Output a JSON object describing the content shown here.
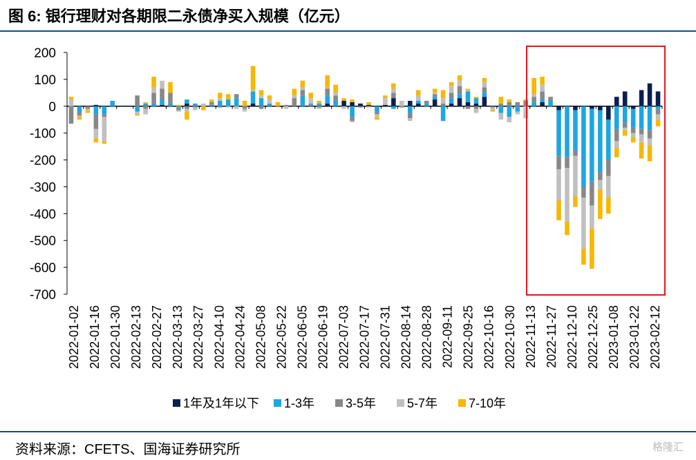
{
  "title": "图 6:  银行理财对各期限二永债净买入规模（亿元）",
  "source": "资料来源：CFETS、国海证券研究所",
  "watermark": "格隆汇",
  "chart_data": {
    "type": "bar",
    "stacked": true,
    "ylim": [
      -700,
      200
    ],
    "yticks": [
      200,
      100,
      0,
      -100,
      -200,
      -300,
      -400,
      -500,
      -600,
      -700
    ],
    "xtick_labels": [
      "2022-01-02",
      "2022-01-16",
      "2022-01-30",
      "2022-02-13",
      "2022-02-27",
      "2022-03-13",
      "2022-03-27",
      "2022-04-10",
      "2022-04-24",
      "2022-05-08",
      "2022-05-22",
      "2022-06-05",
      "2022-06-19",
      "2022-07-03",
      "2022-07-17",
      "2022-07-31",
      "2022-08-14",
      "2022-08-28",
      "2022-09-11",
      "2022-09-25",
      "2022-10-16",
      "2022-10-30",
      "2022-11-13",
      "2022-11-27",
      "2022-12-10",
      "2022-12-25",
      "2023-01-08",
      "2023-01-22",
      "2023-02-12"
    ],
    "legend_position": "bottom",
    "highlight_box": {
      "from_index": 58,
      "to_index": 70,
      "color": "#e8141b"
    },
    "series": [
      {
        "name": "1年及1年以下",
        "color": "#0b1f4f",
        "values": [
          0,
          0,
          0,
          5,
          0,
          0,
          0,
          0,
          0,
          0,
          0,
          5,
          0,
          0,
          10,
          0,
          0,
          0,
          0,
          0,
          0,
          0,
          10,
          0,
          0,
          0,
          0,
          0,
          0,
          0,
          0,
          10,
          0,
          20,
          15,
          10,
          5,
          0,
          5,
          30,
          0,
          20,
          10,
          0,
          25,
          0,
          10,
          30,
          15,
          10,
          35,
          0,
          0,
          0,
          0,
          0,
          0,
          15,
          0,
          -15,
          0,
          -15,
          0,
          -10,
          -15,
          -50,
          35,
          55,
          -10,
          60,
          85,
          55
        ]
      },
      {
        "name": "1-3年",
        "color": "#1ea6e2",
        "values": [
          0,
          -20,
          0,
          -30,
          -30,
          20,
          0,
          0,
          -20,
          10,
          10,
          20,
          10,
          -5,
          15,
          10,
          0,
          5,
          20,
          25,
          30,
          0,
          45,
          30,
          10,
          0,
          0,
          0,
          40,
          5,
          10,
          30,
          20,
          0,
          -40,
          0,
          0,
          -20,
          0,
          -10,
          0,
          -25,
          10,
          10,
          10,
          -55,
          20,
          15,
          40,
          20,
          15,
          0,
          -25,
          -40,
          -20,
          0,
          15,
          10,
          20,
          -170,
          -190,
          -150,
          -300,
          -270,
          -230,
          -150,
          -85,
          -60,
          -70,
          -85,
          -90,
          -10
        ]
      },
      {
        "name": "3-5年",
        "color": "#888888",
        "values": [
          -65,
          -15,
          -10,
          -55,
          -10,
          0,
          0,
          0,
          40,
          -10,
          40,
          40,
          40,
          -10,
          -10,
          -5,
          0,
          10,
          -5,
          0,
          15,
          -10,
          0,
          -10,
          0,
          0,
          5,
          30,
          20,
          5,
          -5,
          25,
          20,
          0,
          -15,
          -5,
          0,
          -10,
          0,
          20,
          -5,
          -20,
          0,
          10,
          10,
          10,
          20,
          30,
          -10,
          -10,
          20,
          -5,
          10,
          15,
          15,
          20,
          20,
          30,
          15,
          -50,
          -40,
          -20,
          -40,
          -90,
          -30,
          -60,
          -45,
          -20,
          -20,
          -20,
          -30,
          -20
        ]
      },
      {
        "name": "5-7年",
        "color": "#c0c0c0",
        "values": [
          25,
          -5,
          -5,
          -35,
          -90,
          0,
          0,
          0,
          -10,
          -20,
          20,
          30,
          0,
          -5,
          -10,
          -10,
          10,
          0,
          10,
          -5,
          -10,
          -10,
          5,
          10,
          15,
          0,
          -10,
          10,
          10,
          20,
          -5,
          5,
          10,
          -10,
          -5,
          0,
          -5,
          -10,
          25,
          15,
          20,
          -10,
          20,
          0,
          5,
          20,
          25,
          20,
          5,
          -15,
          20,
          -10,
          -25,
          -20,
          -10,
          -45,
          10,
          25,
          0,
          -115,
          -200,
          -150,
          -190,
          -85,
          -35,
          -80,
          -25,
          -10,
          -15,
          -30,
          -25,
          -20
        ]
      },
      {
        "name": "7-10年",
        "color": "#f6b800",
        "values": [
          10,
          -10,
          -10,
          -15,
          -10,
          0,
          0,
          0,
          -5,
          5,
          40,
          0,
          40,
          5,
          -30,
          0,
          -15,
          10,
          20,
          20,
          0,
          20,
          90,
          20,
          15,
          15,
          0,
          25,
          25,
          20,
          10,
          45,
          30,
          10,
          10,
          0,
          10,
          -10,
          10,
          20,
          0,
          0,
          20,
          0,
          15,
          30,
          15,
          20,
          5,
          5,
          15,
          -5,
          25,
          10,
          0,
          5,
          60,
          30,
          0,
          -75,
          -50,
          -40,
          -60,
          -150,
          -110,
          -60,
          -35,
          -20,
          -20,
          -60,
          -60,
          -25
        ]
      }
    ]
  }
}
